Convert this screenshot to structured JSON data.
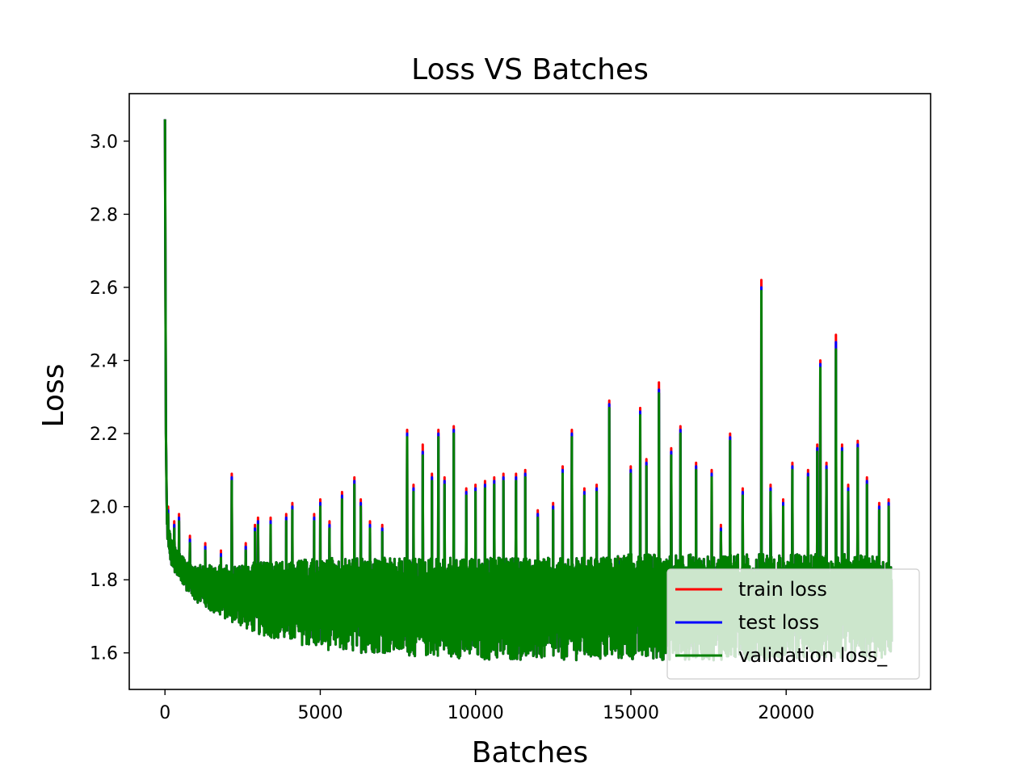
{
  "chart_data": {
    "type": "line",
    "title": "Loss VS Batches",
    "xlabel": "Batches",
    "ylabel": "Loss",
    "xlim": [
      -1150,
      24650
    ],
    "ylim": [
      1.5,
      3.13
    ],
    "xticks": [
      0,
      5000,
      10000,
      15000,
      20000
    ],
    "xtick_labels": [
      "0",
      "5000",
      "10000",
      "15000",
      "20000"
    ],
    "yticks": [
      1.6,
      1.8,
      2.0,
      2.2,
      2.4,
      2.6,
      2.8,
      3.0
    ],
    "ytick_labels": [
      "1.6",
      "1.8",
      "2.0",
      "2.2",
      "2.4",
      "2.6",
      "2.8",
      "3.0"
    ],
    "grid": false,
    "legend_position": "lower-right",
    "series": [
      {
        "name": "train loss",
        "color": "#ff0000",
        "x": [
          0,
          30,
          60,
          100,
          200,
          300,
          400,
          500,
          600,
          800,
          1000,
          1200,
          1500,
          2000,
          2500,
          3000,
          3500,
          4000,
          5000,
          6000,
          7000,
          8000,
          9000,
          10000,
          11000,
          12000,
          13000,
          14000,
          15000,
          16000,
          17000,
          18000,
          19000,
          20000,
          21000,
          22000,
          23000,
          23400
        ],
        "lower": [
          3.06,
          2.2,
          1.95,
          1.88,
          1.84,
          1.82,
          1.8,
          1.79,
          1.78,
          1.76,
          1.74,
          1.73,
          1.71,
          1.69,
          1.67,
          1.65,
          1.64,
          1.63,
          1.61,
          1.6,
          1.6,
          1.59,
          1.59,
          1.58,
          1.58,
          1.58,
          1.58,
          1.58,
          1.58,
          1.58,
          1.58,
          1.58,
          1.58,
          1.58,
          1.58,
          1.58,
          1.58,
          1.6
        ],
        "upper": [
          3.06,
          2.2,
          2.0,
          1.95,
          1.92,
          1.9,
          1.88,
          1.87,
          1.86,
          1.85,
          1.84,
          1.84,
          1.84,
          1.84,
          1.84,
          1.85,
          1.85,
          1.85,
          1.86,
          1.86,
          1.86,
          1.86,
          1.86,
          1.86,
          1.86,
          1.86,
          1.86,
          1.86,
          1.87,
          1.87,
          1.87,
          1.87,
          1.87,
          1.87,
          1.87,
          1.87,
          1.87,
          1.84
        ],
        "spikes": [
          [
            100,
            2.0
          ],
          [
            300,
            1.96
          ],
          [
            450,
            1.98
          ],
          [
            800,
            1.92
          ],
          [
            1300,
            1.9
          ],
          [
            1800,
            1.88
          ],
          [
            2150,
            2.09
          ],
          [
            2600,
            1.9
          ],
          [
            2900,
            1.95
          ],
          [
            3000,
            1.97
          ],
          [
            3400,
            1.97
          ],
          [
            3900,
            1.98
          ],
          [
            4100,
            2.01
          ],
          [
            4800,
            1.98
          ],
          [
            5000,
            2.02
          ],
          [
            5300,
            1.96
          ],
          [
            5700,
            2.04
          ],
          [
            6100,
            2.08
          ],
          [
            6300,
            2.02
          ],
          [
            6600,
            1.96
          ],
          [
            7000,
            1.95
          ],
          [
            7800,
            2.21
          ],
          [
            8000,
            2.06
          ],
          [
            8300,
            2.17
          ],
          [
            8600,
            2.09
          ],
          [
            8800,
            2.21
          ],
          [
            9000,
            2.08
          ],
          [
            9300,
            2.22
          ],
          [
            9700,
            2.05
          ],
          [
            10000,
            2.06
          ],
          [
            10300,
            2.07
          ],
          [
            10600,
            2.08
          ],
          [
            10900,
            2.09
          ],
          [
            11300,
            2.09
          ],
          [
            11600,
            2.1
          ],
          [
            12000,
            1.99
          ],
          [
            12500,
            2.01
          ],
          [
            12800,
            2.11
          ],
          [
            13100,
            2.21
          ],
          [
            13500,
            2.05
          ],
          [
            13900,
            2.06
          ],
          [
            14300,
            2.29
          ],
          [
            14600,
            1.86
          ],
          [
            15000,
            2.11
          ],
          [
            15300,
            2.27
          ],
          [
            15500,
            2.13
          ],
          [
            15900,
            2.34
          ],
          [
            16300,
            2.16
          ],
          [
            16600,
            2.22
          ],
          [
            17100,
            2.12
          ],
          [
            17600,
            2.1
          ],
          [
            17900,
            1.95
          ],
          [
            18200,
            2.2
          ],
          [
            18600,
            2.05
          ],
          [
            19200,
            2.62
          ],
          [
            19500,
            2.06
          ],
          [
            19900,
            2.02
          ],
          [
            20200,
            2.12
          ],
          [
            20700,
            2.1
          ],
          [
            21000,
            2.17
          ],
          [
            21100,
            2.4
          ],
          [
            21300,
            2.12
          ],
          [
            21600,
            2.47
          ],
          [
            21800,
            2.17
          ],
          [
            22000,
            2.06
          ],
          [
            22300,
            2.18
          ],
          [
            22600,
            2.08
          ],
          [
            23000,
            2.01
          ],
          [
            23300,
            2.02
          ]
        ]
      },
      {
        "name": "test loss",
        "color": "#0000ff",
        "x": [
          0,
          30,
          60,
          100,
          200,
          300,
          400,
          500,
          600,
          800,
          1000,
          1200,
          1500,
          2000,
          2500,
          3000,
          3500,
          4000,
          5000,
          6000,
          7000,
          8000,
          9000,
          10000,
          11000,
          12000,
          13000,
          14000,
          15000,
          16000,
          17000,
          18000,
          19000,
          20000,
          21000,
          22000,
          23000,
          23400
        ],
        "lower": [
          3.06,
          2.2,
          1.95,
          1.88,
          1.84,
          1.82,
          1.8,
          1.79,
          1.78,
          1.76,
          1.74,
          1.73,
          1.71,
          1.69,
          1.67,
          1.65,
          1.64,
          1.63,
          1.61,
          1.6,
          1.6,
          1.59,
          1.59,
          1.58,
          1.58,
          1.58,
          1.58,
          1.58,
          1.58,
          1.58,
          1.58,
          1.58,
          1.58,
          1.58,
          1.58,
          1.58,
          1.58,
          1.6
        ],
        "upper": [
          3.06,
          2.2,
          2.0,
          1.95,
          1.92,
          1.9,
          1.88,
          1.87,
          1.86,
          1.85,
          1.84,
          1.84,
          1.84,
          1.84,
          1.84,
          1.85,
          1.85,
          1.85,
          1.86,
          1.86,
          1.86,
          1.86,
          1.86,
          1.86,
          1.86,
          1.86,
          1.86,
          1.86,
          1.87,
          1.87,
          1.87,
          1.87,
          1.87,
          1.87,
          1.87,
          1.87,
          1.87,
          1.84
        ],
        "spikes": [
          [
            100,
            1.99
          ],
          [
            300,
            1.95
          ],
          [
            450,
            1.97
          ],
          [
            800,
            1.91
          ],
          [
            1300,
            1.89
          ],
          [
            1800,
            1.87
          ],
          [
            2150,
            2.08
          ],
          [
            2600,
            1.89
          ],
          [
            2900,
            1.94
          ],
          [
            3000,
            1.96
          ],
          [
            3400,
            1.96
          ],
          [
            3900,
            1.97
          ],
          [
            4100,
            2.0
          ],
          [
            4800,
            1.97
          ],
          [
            5000,
            2.01
          ],
          [
            5300,
            1.95
          ],
          [
            5700,
            2.03
          ],
          [
            6100,
            2.07
          ],
          [
            6300,
            2.01
          ],
          [
            6600,
            1.95
          ],
          [
            7000,
            1.94
          ],
          [
            7800,
            2.2
          ],
          [
            8000,
            2.05
          ],
          [
            8300,
            2.15
          ],
          [
            8600,
            2.08
          ],
          [
            8800,
            2.2
          ],
          [
            9000,
            2.07
          ],
          [
            9300,
            2.21
          ],
          [
            9700,
            2.04
          ],
          [
            10000,
            2.05
          ],
          [
            10300,
            2.06
          ],
          [
            10600,
            2.07
          ],
          [
            10900,
            2.08
          ],
          [
            11300,
            2.08
          ],
          [
            11600,
            2.09
          ],
          [
            12000,
            1.98
          ],
          [
            12500,
            2.0
          ],
          [
            12800,
            2.1
          ],
          [
            13100,
            2.2
          ],
          [
            13500,
            2.04
          ],
          [
            13900,
            2.05
          ],
          [
            14300,
            2.28
          ],
          [
            14600,
            1.85
          ],
          [
            15000,
            2.1
          ],
          [
            15300,
            2.26
          ],
          [
            15500,
            2.12
          ],
          [
            15900,
            2.32
          ],
          [
            16300,
            2.15
          ],
          [
            16600,
            2.21
          ],
          [
            17100,
            2.11
          ],
          [
            17600,
            2.09
          ],
          [
            17900,
            1.94
          ],
          [
            18200,
            2.19
          ],
          [
            18600,
            2.04
          ],
          [
            19200,
            2.6
          ],
          [
            19500,
            2.05
          ],
          [
            19900,
            2.01
          ],
          [
            20200,
            2.11
          ],
          [
            20700,
            2.09
          ],
          [
            21000,
            2.16
          ],
          [
            21100,
            2.39
          ],
          [
            21300,
            2.11
          ],
          [
            21600,
            2.45
          ],
          [
            21800,
            2.16
          ],
          [
            22000,
            2.05
          ],
          [
            22300,
            2.17
          ],
          [
            22600,
            2.07
          ],
          [
            23000,
            2.0
          ],
          [
            23300,
            2.01
          ]
        ]
      },
      {
        "name": "validation loss_",
        "color": "#008000",
        "x": [
          0,
          30,
          60,
          100,
          200,
          300,
          400,
          500,
          600,
          800,
          1000,
          1200,
          1500,
          2000,
          2500,
          3000,
          3500,
          4000,
          5000,
          6000,
          7000,
          8000,
          9000,
          10000,
          11000,
          12000,
          13000,
          14000,
          15000,
          16000,
          17000,
          18000,
          19000,
          20000,
          21000,
          22000,
          23000,
          23400
        ],
        "lower": [
          3.06,
          2.2,
          1.95,
          1.88,
          1.84,
          1.82,
          1.8,
          1.79,
          1.78,
          1.76,
          1.74,
          1.73,
          1.71,
          1.69,
          1.67,
          1.65,
          1.64,
          1.63,
          1.61,
          1.6,
          1.6,
          1.59,
          1.59,
          1.58,
          1.58,
          1.58,
          1.58,
          1.58,
          1.58,
          1.58,
          1.58,
          1.58,
          1.58,
          1.58,
          1.58,
          1.58,
          1.58,
          1.6
        ],
        "upper": [
          3.06,
          2.2,
          2.0,
          1.95,
          1.92,
          1.9,
          1.88,
          1.87,
          1.86,
          1.85,
          1.84,
          1.84,
          1.84,
          1.84,
          1.84,
          1.85,
          1.85,
          1.85,
          1.86,
          1.86,
          1.86,
          1.86,
          1.86,
          1.86,
          1.86,
          1.86,
          1.86,
          1.86,
          1.87,
          1.87,
          1.87,
          1.87,
          1.87,
          1.87,
          1.87,
          1.87,
          1.87,
          1.84
        ],
        "spikes": [
          [
            100,
            1.98
          ],
          [
            300,
            1.94
          ],
          [
            450,
            1.96
          ],
          [
            800,
            1.9
          ],
          [
            1300,
            1.88
          ],
          [
            1800,
            1.86
          ],
          [
            2150,
            2.07
          ],
          [
            2600,
            1.88
          ],
          [
            2900,
            1.93
          ],
          [
            3000,
            1.95
          ],
          [
            3400,
            1.95
          ],
          [
            3900,
            1.96
          ],
          [
            4100,
            1.99
          ],
          [
            4800,
            1.96
          ],
          [
            5000,
            2.0
          ],
          [
            5300,
            1.94
          ],
          [
            5700,
            2.02
          ],
          [
            6100,
            2.06
          ],
          [
            6300,
            2.0
          ],
          [
            6600,
            1.94
          ],
          [
            7000,
            1.93
          ],
          [
            7800,
            2.19
          ],
          [
            8000,
            2.04
          ],
          [
            8300,
            2.14
          ],
          [
            8600,
            2.07
          ],
          [
            8800,
            2.19
          ],
          [
            9000,
            2.06
          ],
          [
            9300,
            2.2
          ],
          [
            9700,
            2.03
          ],
          [
            10000,
            2.04
          ],
          [
            10300,
            2.05
          ],
          [
            10600,
            2.06
          ],
          [
            10900,
            2.07
          ],
          [
            11300,
            2.07
          ],
          [
            11600,
            2.08
          ],
          [
            12000,
            1.97
          ],
          [
            12500,
            1.99
          ],
          [
            12800,
            2.09
          ],
          [
            13100,
            2.19
          ],
          [
            13500,
            2.03
          ],
          [
            13900,
            2.04
          ],
          [
            14300,
            2.27
          ],
          [
            14600,
            1.84
          ],
          [
            15000,
            2.09
          ],
          [
            15300,
            2.25
          ],
          [
            15500,
            2.11
          ],
          [
            15900,
            2.31
          ],
          [
            16300,
            2.14
          ],
          [
            16600,
            2.2
          ],
          [
            17100,
            2.1
          ],
          [
            17600,
            2.08
          ],
          [
            17900,
            1.93
          ],
          [
            18200,
            2.18
          ],
          [
            18600,
            2.03
          ],
          [
            19200,
            2.59
          ],
          [
            19500,
            2.04
          ],
          [
            19900,
            2.0
          ],
          [
            20200,
            2.1
          ],
          [
            20700,
            2.08
          ],
          [
            21000,
            2.15
          ],
          [
            21100,
            2.38
          ],
          [
            21300,
            2.1
          ],
          [
            21600,
            2.43
          ],
          [
            21800,
            2.15
          ],
          [
            22000,
            2.04
          ],
          [
            22300,
            2.16
          ],
          [
            22600,
            2.06
          ],
          [
            23000,
            1.99
          ],
          [
            23300,
            2.0
          ]
        ]
      }
    ]
  }
}
